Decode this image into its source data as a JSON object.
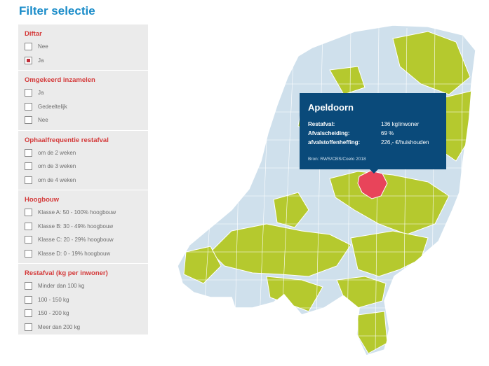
{
  "title": "Filter selectie",
  "filters": [
    {
      "title": "Diftar",
      "options": [
        {
          "label": "Nee",
          "checked": false
        },
        {
          "label": "Ja",
          "checked": true
        }
      ]
    },
    {
      "title": "Omgekeerd inzamelen",
      "options": [
        {
          "label": "Ja",
          "checked": false
        },
        {
          "label": "Gedeeltelijk",
          "checked": false
        },
        {
          "label": "Nee",
          "checked": false
        }
      ]
    },
    {
      "title": "Ophaalfrequentie restafval",
      "options": [
        {
          "label": "om de 2 weken",
          "checked": false
        },
        {
          "label": "om de 3 weken",
          "checked": false
        },
        {
          "label": "om de 4 weken",
          "checked": false
        }
      ]
    },
    {
      "title": "Hoogbouw",
      "options": [
        {
          "label": "Klasse A: 50 - 100% hoogbouw",
          "checked": false
        },
        {
          "label": "Klasse B: 30 - 49% hoogbouw",
          "checked": false
        },
        {
          "label": "Klasse C: 20 - 29% hoogbouw",
          "checked": false
        },
        {
          "label": "Klasse D: 0 - 19% hoogbouw",
          "checked": false
        }
      ]
    },
    {
      "title": "Restafval (kg per inwoner)",
      "options": [
        {
          "label": "Minder dan 100 kg",
          "checked": false
        },
        {
          "label": "100 - 150 kg",
          "checked": false
        },
        {
          "label": "150 - 200 kg",
          "checked": false
        },
        {
          "label": "Meer dan 200 kg",
          "checked": false
        }
      ]
    }
  ],
  "tooltip": {
    "title": "Apeldoorn",
    "rows": [
      {
        "key": "Restafval:",
        "value": "136 kg/inwoner"
      },
      {
        "key": "Afvalscheiding:",
        "value": "69 %"
      },
      {
        "key": "afvalstoffenheffing:",
        "value": "226,- €/huishouden"
      }
    ],
    "source": "Bron: RWS/CBS/Coelo 2018"
  },
  "map_colors": {
    "default_municipality": "#cfe0ec",
    "matching_municipality": "#b5c92e",
    "selected_municipality": "#e8445a",
    "border": "#ffffff",
    "tooltip_bg": "#0a4a7a"
  }
}
